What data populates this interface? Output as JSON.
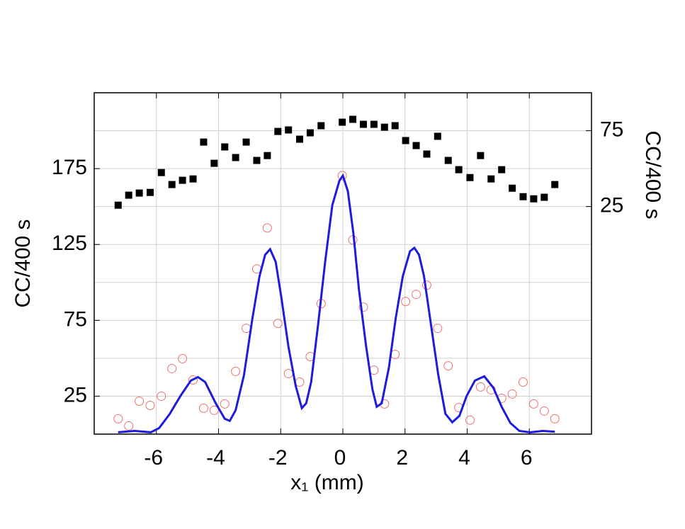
{
  "chart_data": {
    "type": "scatter",
    "x_label": "x₁ (mm)",
    "y_label": "CC/400 s",
    "y2_label": "CC/400 s",
    "xlim": [
      -8,
      8
    ],
    "xticks": [
      -6,
      -4,
      -2,
      0,
      2,
      4,
      6
    ],
    "ylim": [
      0,
      225
    ],
    "yticks": [
      25,
      75,
      125,
      175
    ],
    "ygrid": [
      25,
      50,
      75,
      100,
      125,
      150,
      175,
      200
    ],
    "y2lim": [
      -125,
      100
    ],
    "y2ticks": [
      25,
      75
    ],
    "grid": true,
    "series": [
      {
        "kind": "square",
        "color": "#000000",
        "axis": "y2",
        "x": [
          -7.23,
          -6.89,
          -6.55,
          -6.2,
          -5.84,
          -5.5,
          -5.16,
          -4.82,
          -4.48,
          -4.14,
          -3.8,
          -3.45,
          -3.11,
          -2.77,
          -2.43,
          -2.09,
          -1.75,
          -1.39,
          -1.05,
          -0.7,
          -0.02,
          0.32,
          0.66,
          1.0,
          1.34,
          1.68,
          2.02,
          2.36,
          2.7,
          3.05,
          3.39,
          3.73,
          4.09,
          4.43,
          4.77,
          5.11,
          5.45,
          5.8,
          6.14,
          6.48,
          6.82
        ],
        "values": [
          25.9,
          32.5,
          33.9,
          34.3,
          47.4,
          39.5,
          42.3,
          43.2,
          67.5,
          53.5,
          64.3,
          57.3,
          67.5,
          55.4,
          58.6,
          74.5,
          75.5,
          69.4,
          73.6,
          78.3,
          80.6,
          82.5,
          79.2,
          79.2,
          77.3,
          78.3,
          68.5,
          65.2,
          59.6,
          71.3,
          55.4,
          49.3,
          44.1,
          58.6,
          43.2,
          49.3,
          37.1,
          31.5,
          30.1,
          31.1,
          39.5
        ]
      },
      {
        "kind": "circle",
        "color": "#f07070",
        "x": [
          -7.23,
          -6.89,
          -6.55,
          -6.2,
          -5.84,
          -5.5,
          -5.16,
          -4.82,
          -4.48,
          -4.14,
          -3.8,
          -3.45,
          -3.11,
          -2.77,
          -2.43,
          -2.09,
          -1.75,
          -1.39,
          -1.05,
          -0.7,
          -0.02,
          0.32,
          0.66,
          1.0,
          1.34,
          1.68,
          2.02,
          2.36,
          2.7,
          3.05,
          3.39,
          3.73,
          4.09,
          4.43,
          4.77,
          5.11,
          5.45,
          5.8,
          6.14,
          6.48,
          6.82
        ],
        "values": [
          10.1,
          5.4,
          21.7,
          18.9,
          25,
          43.2,
          49.7,
          35.7,
          17.1,
          15.7,
          19.9,
          41.3,
          69.7,
          108.9,
          135.9,
          73.0,
          39.9,
          34.3,
          51.1,
          86.0,
          170.4,
          128.0,
          83.7,
          42.2,
          19.9,
          52.5,
          87.4,
          92.1,
          98.2,
          69.7,
          45.0,
          17.5,
          9.2,
          31.1,
          29.2,
          23.6,
          26.4,
          34.3,
          19.9,
          15.2,
          10.1
        ]
      },
      {
        "kind": "line",
        "color": "#1c1cdc",
        "x": [
          -7.23,
          -6.7,
          -6.18,
          -5.91,
          -5.57,
          -5.23,
          -4.89,
          -4.66,
          -4.43,
          -4.09,
          -3.8,
          -3.64,
          -3.45,
          -3.18,
          -2.91,
          -2.68,
          -2.5,
          -2.34,
          -2.16,
          -1.98,
          -1.75,
          -1.52,
          -1.32,
          -1.18,
          -1.02,
          -0.8,
          -0.57,
          -0.34,
          -0.11,
          0,
          0.16,
          0.34,
          0.52,
          0.75,
          0.95,
          1.09,
          1.25,
          1.48,
          1.7,
          1.93,
          2.16,
          2.3,
          2.45,
          2.61,
          2.84,
          3.07,
          3.3,
          3.52,
          3.75,
          3.98,
          4.25,
          4.55,
          4.84,
          5.11,
          5.39,
          5.68,
          6.02,
          6.43,
          6.82
        ],
        "values": [
          1.2,
          2.1,
          1.2,
          4.0,
          13.3,
          25,
          35.3,
          37.6,
          34.3,
          20.3,
          10.1,
          8.7,
          15.7,
          39.0,
          76.3,
          104.2,
          118.2,
          121.9,
          113.5,
          90.2,
          57.6,
          32.0,
          17.1,
          20.3,
          34.3,
          71.6,
          113.5,
          150.8,
          167.1,
          170.4,
          160.2,
          132.2,
          94.9,
          57.6,
          29.7,
          18.0,
          20.3,
          43.6,
          76.3,
          104.2,
          120.5,
          122.8,
          118.2,
          104.2,
          71.6,
          39.0,
          13.4,
          7.8,
          12.0,
          25,
          35.3,
          38.1,
          30.6,
          18.0,
          7.3,
          2.1,
          1.2,
          2.1,
          1.6
        ]
      }
    ]
  }
}
